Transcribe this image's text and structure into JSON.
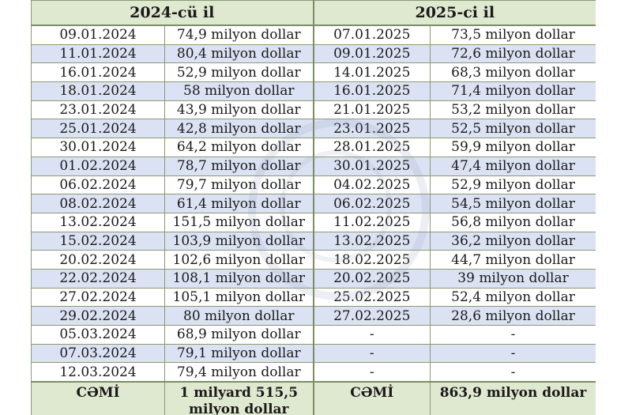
{
  "headers": {
    "year2024": "2024-cü il",
    "year2025": "2025-ci il"
  },
  "rows": [
    {
      "d1": "09.01.2024",
      "v1": "74,9 milyon dollar",
      "d2": "07.01.2025",
      "v2": "73,5 milyon dollar"
    },
    {
      "d1": "11.01.2024",
      "v1": "80,4 milyon dollar",
      "d2": "09.01.2025",
      "v2": "72,6 milyon dollar"
    },
    {
      "d1": "16.01.2024",
      "v1": "52,9 milyon dollar",
      "d2": "14.01.2025",
      "v2": "68,3 milyon dollar"
    },
    {
      "d1": "18.01.2024",
      "v1": "58 milyon dollar",
      "d2": "16.01.2025",
      "v2": "71,4 milyon dollar"
    },
    {
      "d1": "23.01.2024",
      "v1": "43,9 milyon dollar",
      "d2": "21.01.2025",
      "v2": "53,2 milyon dollar"
    },
    {
      "d1": "25.01.2024",
      "v1": "42,8 milyon dollar",
      "d2": "23.01.2025",
      "v2": "52,5 milyon dollar"
    },
    {
      "d1": "30.01.2024",
      "v1": "64,2 milyon dollar",
      "d2": "28.01.2025",
      "v2": "59,9 milyon dollar"
    },
    {
      "d1": "01.02.2024",
      "v1": "78,7 milyon dollar",
      "d2": "30.01.2025",
      "v2": "47,4 milyon dollar"
    },
    {
      "d1": "06.02.2024",
      "v1": "79,7 milyon dollar",
      "d2": "04.02.2025",
      "v2": "52,9 milyon dollar"
    },
    {
      "d1": "08.02.2024",
      "v1": "61,4 milyon dollar",
      "d2": "06.02.2025",
      "v2": "54,5 milyon dollar"
    },
    {
      "d1": "13.02.2024",
      "v1": "151,5 milyon dollar",
      "d2": "11.02.2025",
      "v2": "56,8 milyon dollar"
    },
    {
      "d1": "15.02.2024",
      "v1": "103,9 milyon dollar",
      "d2": "13.02.2025",
      "v2": "36,2 milyon dollar"
    },
    {
      "d1": "20.02.2024",
      "v1": "102,6 milyon dollar",
      "d2": "18.02.2025",
      "v2": "44,7 milyon dollar"
    },
    {
      "d1": "22.02.2024",
      "v1": "108,1 milyon dollar",
      "d2": "20.02.2025",
      "v2": "39 milyon dollar"
    },
    {
      "d1": "27.02.2024",
      "v1": "105,1 milyon dollar",
      "d2": "25.02.2025",
      "v2": "52,4 milyon dollar"
    },
    {
      "d1": "29.02.2024",
      "v1": "80 milyon dollar",
      "d2": "27.02.2025",
      "v2": "28,6 milyon dollar"
    },
    {
      "d1": "05.03.2024",
      "v1": "68,9 milyon dollar",
      "d2": "-",
      "v2": "-"
    },
    {
      "d1": "07.03.2024",
      "v1": "79,1 milyon dollar",
      "d2": "-",
      "v2": "-"
    },
    {
      "d1": "12.03.2024",
      "v1": "79,4 milyon dollar",
      "d2": "-",
      "v2": "-"
    }
  ],
  "totals": {
    "label2024": "CƏMİ",
    "value2024": "1 milyard 515,5 milyon dollar",
    "label2025": "CƏMİ",
    "value2025": "863,9 milyon dollar"
  }
}
